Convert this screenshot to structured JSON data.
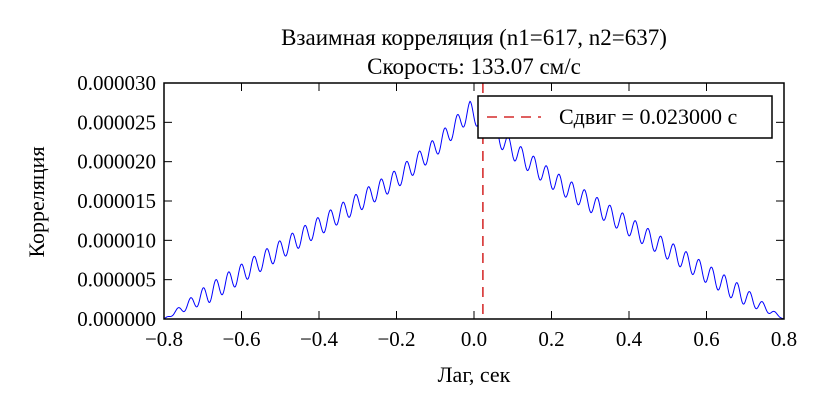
{
  "chart_data": {
    "type": "line",
    "title": "Взаимная корреляция (n1=617, n2=637)",
    "subtitle": "Скорость: 133.07 см/с",
    "xlabel": "Лаг, сек",
    "ylabel": "Корреляция",
    "xlim": [
      -0.8,
      0.8
    ],
    "ylim": [
      0,
      3e-05
    ],
    "xticks": [
      "−0.8",
      "−0.6",
      "−0.4",
      "−0.2",
      "0.0",
      "0.2",
      "0.4",
      "0.6",
      "0.8"
    ],
    "xtick_values": [
      -0.8,
      -0.6,
      -0.4,
      -0.2,
      0.0,
      0.2,
      0.4,
      0.6,
      0.8
    ],
    "yticks": [
      "0.000000",
      "0.000005",
      "0.000010",
      "0.000015",
      "0.000020",
      "0.000025",
      "0.000030"
    ],
    "ytick_values": [
      0,
      5e-06,
      1e-05,
      1.5e-05,
      2e-05,
      2.5e-05,
      3e-05
    ],
    "grid": false,
    "legend_position": "top-right",
    "series": [
      {
        "color": "#0000ff",
        "peak_value": 2.72e-05,
        "peak_lag": -0.01,
        "ripple_period": 0.0328,
        "ripple_amplitude": 1.2e-06,
        "x_points": [
          -0.8,
          -0.7,
          -0.6,
          -0.5,
          -0.4,
          -0.3,
          -0.2,
          -0.1,
          -0.01,
          0.1,
          0.2,
          0.3,
          0.4,
          0.5,
          0.6,
          0.7,
          0.8
        ],
        "y_points": [
          0.0,
          3.5e-06,
          6.5e-06,
          9.5e-06,
          1.25e-05,
          1.55e-05,
          1.85e-05,
          2.25e-05,
          2.72e-05,
          2.22e-05,
          1.85e-05,
          1.55e-05,
          1.25e-05,
          9.5e-06,
          6.5e-06,
          3.5e-06,
          0.0
        ]
      }
    ],
    "markers": [
      {
        "name": "Сдвиг = 0.023000 с",
        "x": 0.023,
        "color": "#cc0000",
        "style": "dashed"
      }
    ]
  }
}
